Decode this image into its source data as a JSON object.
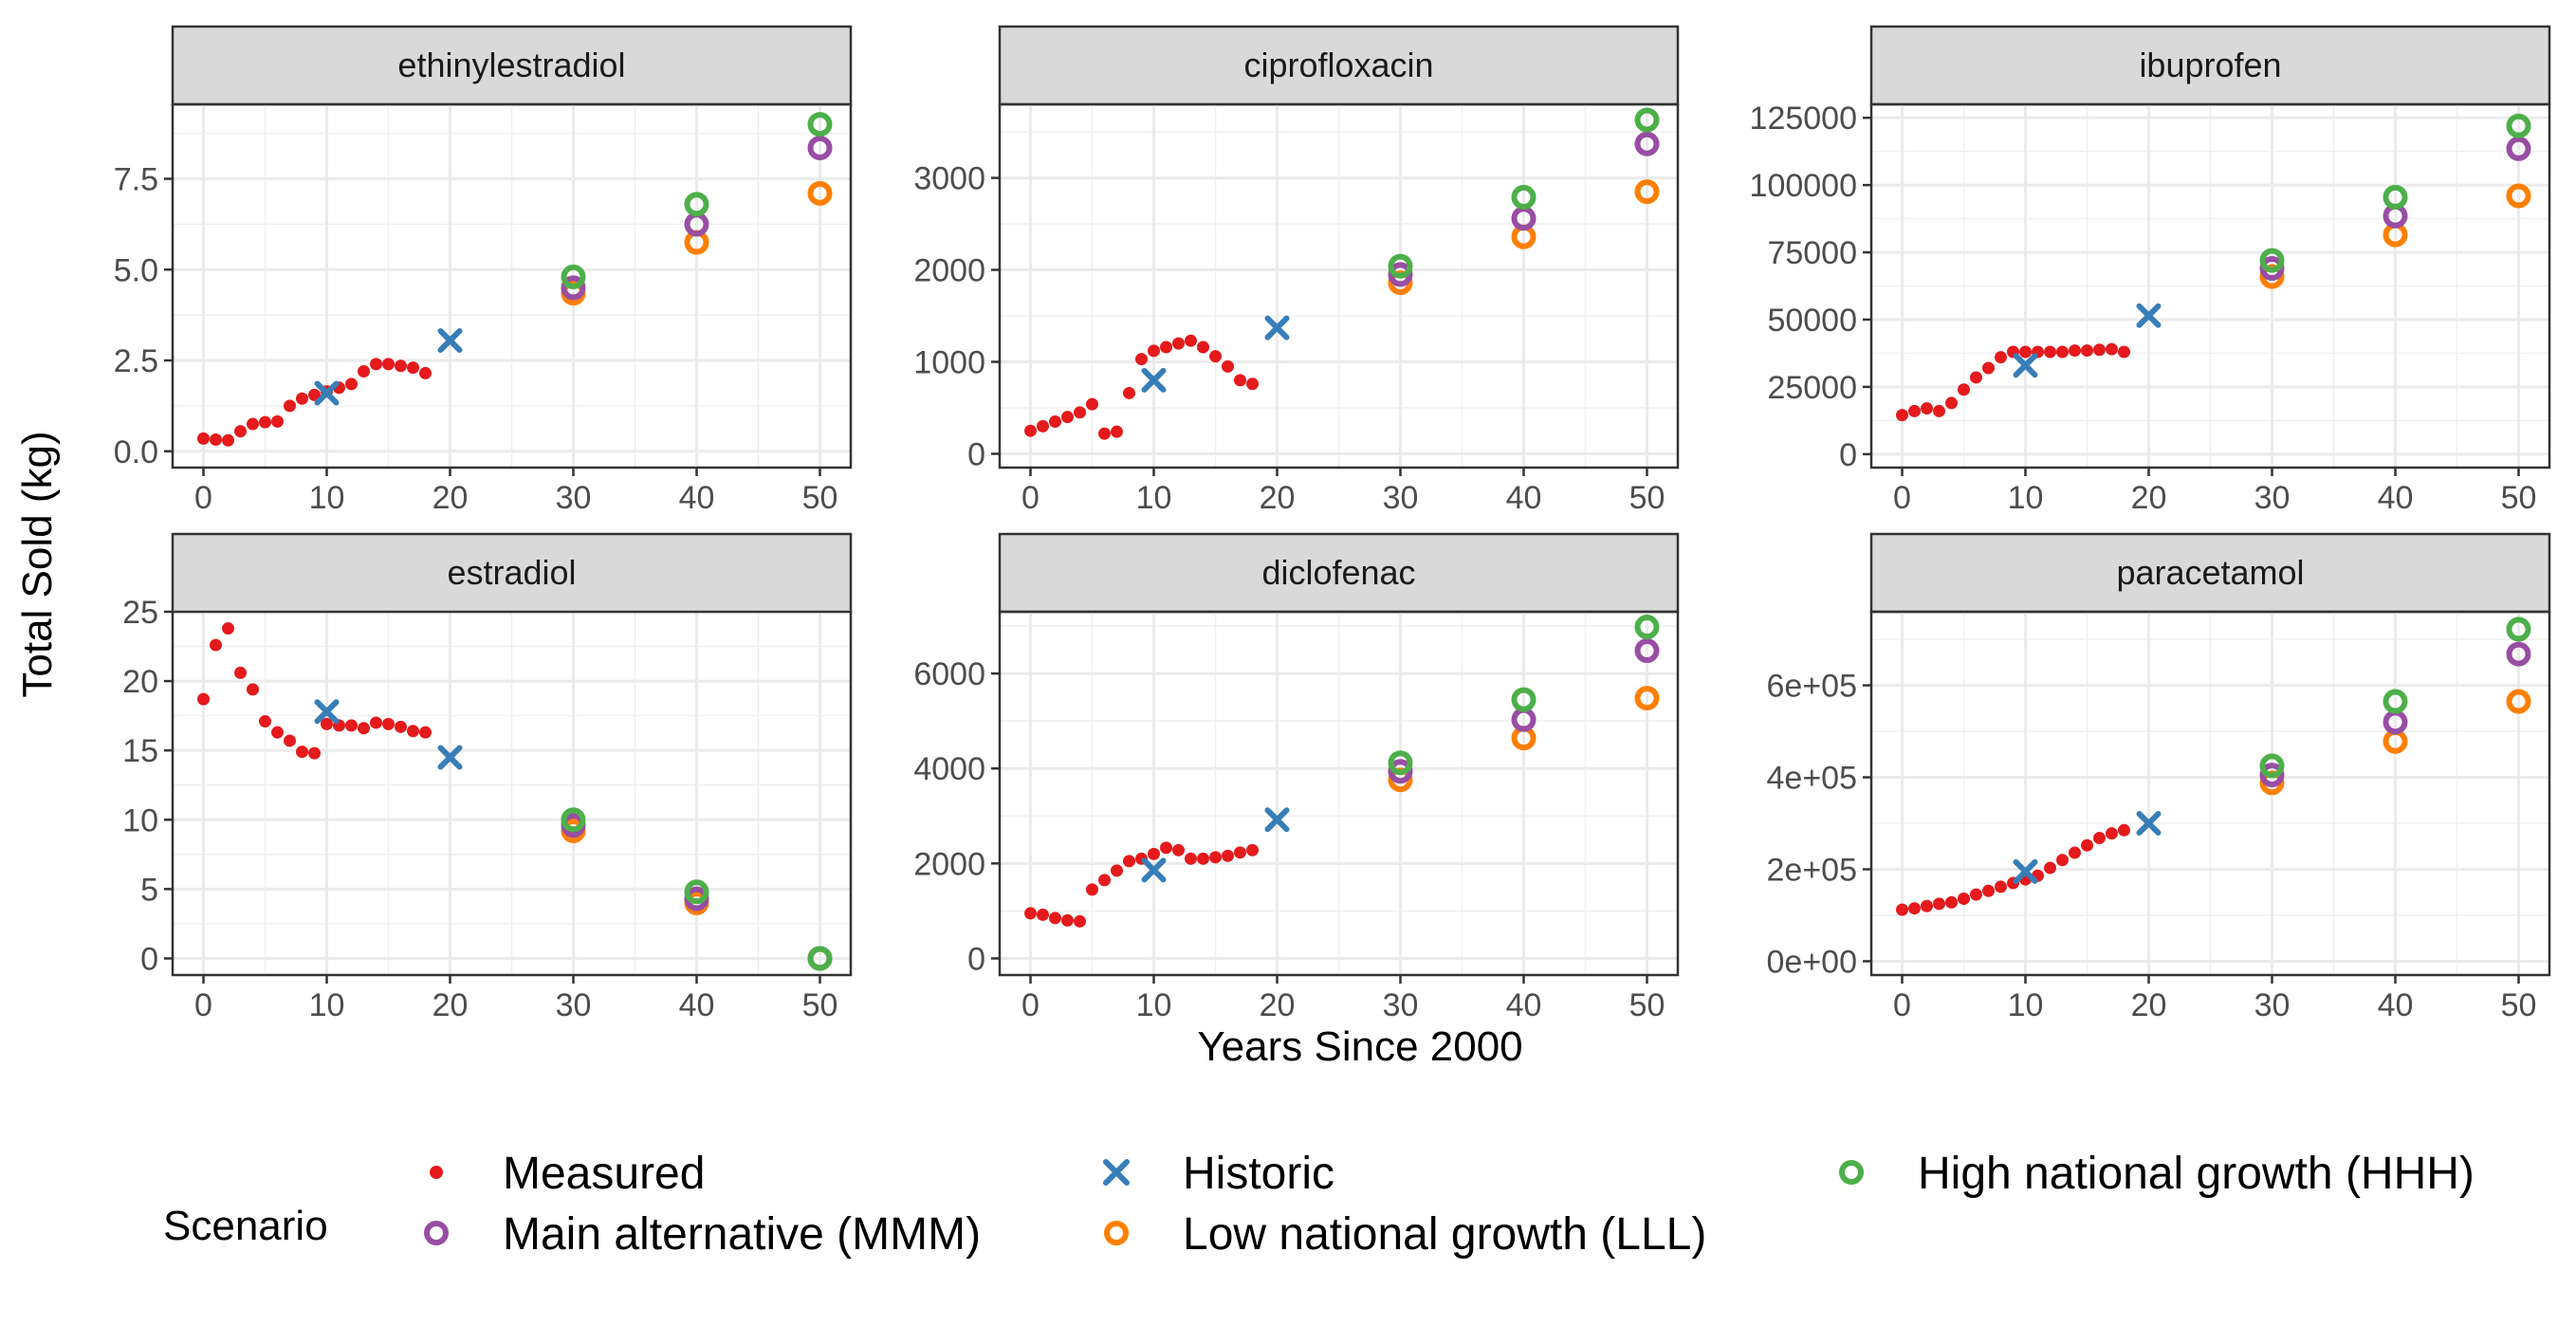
{
  "chart_data": {
    "type": "scatter",
    "xlabel": "Years Since 2000",
    "ylabel": "Total Sold (kg)",
    "x_ticks": [
      0,
      10,
      20,
      30,
      40,
      50
    ],
    "xlim": [
      -2.5,
      52.5
    ],
    "grid": true,
    "legend": {
      "title": "Scenario",
      "placement": "bottom",
      "entries": [
        {
          "name": "Measured",
          "shape": "dot",
          "color": "#E41A1C"
        },
        {
          "name": "Historic",
          "shape": "cross",
          "color": "#377EB8"
        },
        {
          "name": "High national growth (HHH)",
          "shape": "ring",
          "color": "#4DAF4A"
        },
        {
          "name": "Main alternative (MMM)",
          "shape": "ring",
          "color": "#984EA3"
        },
        {
          "name": "Low national growth (LLL)",
          "shape": "ring",
          "color": "#FF7F00"
        }
      ]
    },
    "panels": [
      {
        "title": "ethinylestradiol",
        "ylim": [
          -0.45,
          9.55
        ],
        "y_ticks": [
          0,
          2.5,
          5,
          7.5
        ],
        "y_tick_labels": [
          "0.0",
          "2.5",
          "5.0",
          "7.5"
        ],
        "measured": {
          "x": [
            0,
            1,
            2,
            3,
            4,
            5,
            6,
            7,
            8,
            9,
            10,
            11,
            12,
            13,
            14,
            15,
            16,
            17,
            18
          ],
          "y": [
            0.35,
            0.32,
            0.3,
            0.55,
            0.75,
            0.8,
            0.82,
            1.25,
            1.45,
            1.55,
            1.65,
            1.75,
            1.85,
            2.2,
            2.4,
            2.4,
            2.35,
            2.3,
            2.15
          ]
        },
        "historic": {
          "x": [
            10,
            20
          ],
          "y": [
            1.6,
            3.05
          ]
        },
        "high": {
          "x": [
            30,
            40,
            50
          ],
          "y": [
            4.8,
            6.8,
            9.0
          ]
        },
        "main": {
          "x": [
            30,
            40,
            50
          ],
          "y": [
            4.5,
            6.25,
            8.35
          ]
        },
        "low": {
          "x": [
            30,
            40,
            50
          ],
          "y": [
            4.35,
            5.75,
            7.1
          ]
        }
      },
      {
        "title": "ciprofloxacin",
        "ylim": [
          -150,
          3800
        ],
        "y_ticks": [
          0,
          1000,
          2000,
          3000
        ],
        "y_tick_labels": [
          "0",
          "1000",
          "2000",
          "3000"
        ],
        "measured": {
          "x": [
            0,
            1,
            2,
            3,
            4,
            5,
            6,
            7,
            8,
            9,
            10,
            11,
            12,
            13,
            14,
            15,
            16,
            17,
            18
          ],
          "y": [
            250,
            300,
            350,
            400,
            450,
            540,
            220,
            240,
            660,
            1030,
            1120,
            1160,
            1200,
            1230,
            1160,
            1060,
            950,
            800,
            760
          ]
        },
        "historic": {
          "x": [
            10,
            20
          ],
          "y": [
            800,
            1370
          ]
        },
        "high": {
          "x": [
            30,
            40,
            50
          ],
          "y": [
            2040,
            2790,
            3630
          ]
        },
        "main": {
          "x": [
            30,
            40,
            50
          ],
          "y": [
            1950,
            2560,
            3370
          ]
        },
        "low": {
          "x": [
            30,
            40,
            50
          ],
          "y": [
            1860,
            2360,
            2850
          ]
        }
      },
      {
        "title": "ibuprofen",
        "ylim": [
          -5000,
          130000
        ],
        "y_ticks": [
          0,
          25000,
          50000,
          75000,
          100000,
          125000
        ],
        "y_tick_labels": [
          "0",
          "25000",
          "50000",
          "75000",
          "100000",
          "125000"
        ],
        "measured": {
          "x": [
            0,
            1,
            2,
            3,
            4,
            5,
            6,
            7,
            8,
            9,
            10,
            11,
            12,
            13,
            14,
            15,
            16,
            17,
            18
          ],
          "y": [
            14500,
            16000,
            17000,
            16000,
            19000,
            24000,
            28500,
            32000,
            36000,
            38000,
            38000,
            38000,
            38000,
            38000,
            38500,
            38500,
            38800,
            39000,
            38000
          ]
        },
        "historic": {
          "x": [
            10,
            20
          ],
          "y": [
            33000,
            51500
          ]
        },
        "high": {
          "x": [
            30,
            40,
            50
          ],
          "y": [
            72000,
            95500,
            122000
          ]
        },
        "main": {
          "x": [
            30,
            40,
            50
          ],
          "y": [
            69000,
            88500,
            113500
          ]
        },
        "low": {
          "x": [
            30,
            40,
            50
          ],
          "y": [
            66000,
            81500,
            96000
          ]
        }
      },
      {
        "title": "estradiol",
        "ylim": [
          -1.2,
          25.0
        ],
        "y_ticks": [
          0,
          5,
          10,
          15,
          20,
          25
        ],
        "y_tick_labels": [
          "0",
          "5",
          "10",
          "15",
          "20",
          "25"
        ],
        "measured": {
          "x": [
            0,
            1,
            2,
            3,
            4,
            5,
            6,
            7,
            8,
            9,
            10,
            11,
            12,
            13,
            14,
            15,
            16,
            17,
            18
          ],
          "y": [
            18.7,
            22.6,
            23.8,
            20.6,
            19.4,
            17.1,
            16.3,
            15.7,
            14.9,
            14.8,
            16.9,
            16.8,
            16.8,
            16.6,
            17.0,
            16.9,
            16.7,
            16.4,
            16.3
          ]
        },
        "historic": {
          "x": [
            10,
            20
          ],
          "y": [
            17.8,
            14.5
          ]
        },
        "high": {
          "x": [
            30,
            40,
            50
          ],
          "y": [
            10.0,
            4.8,
            0
          ]
        },
        "main": {
          "x": [
            30,
            40,
            50
          ],
          "y": [
            9.6,
            4.3,
            0
          ]
        },
        "low": {
          "x": [
            30,
            40,
            50
          ],
          "y": [
            9.2,
            4.0,
            0
          ]
        }
      },
      {
        "title": "diclofenac",
        "ylim": [
          -350,
          7300
        ],
        "y_ticks": [
          0,
          2000,
          4000,
          6000
        ],
        "y_tick_labels": [
          "0",
          "2000",
          "4000",
          "6000"
        ],
        "measured": {
          "x": [
            0,
            1,
            2,
            3,
            4,
            5,
            6,
            7,
            8,
            9,
            10,
            11,
            12,
            13,
            14,
            15,
            16,
            17,
            18
          ],
          "y": [
            950,
            920,
            850,
            800,
            780,
            1450,
            1650,
            1850,
            2050,
            2100,
            2200,
            2330,
            2280,
            2100,
            2100,
            2130,
            2160,
            2230,
            2280
          ]
        },
        "historic": {
          "x": [
            10,
            20
          ],
          "y": [
            1860,
            2920
          ]
        },
        "high": {
          "x": [
            30,
            40,
            50
          ],
          "y": [
            4120,
            5450,
            6980
          ]
        },
        "main": {
          "x": [
            30,
            40,
            50
          ],
          "y": [
            3940,
            5030,
            6480
          ]
        },
        "low": {
          "x": [
            30,
            40,
            50
          ],
          "y": [
            3760,
            4640,
            5480
          ]
        }
      },
      {
        "title": "paracetamol",
        "ylim": [
          -30000,
          760000
        ],
        "y_ticks": [
          0,
          200000,
          400000,
          600000
        ],
        "y_tick_labels": [
          "0e+00",
          "2e+05",
          "4e+05",
          "6e+05"
        ],
        "measured": {
          "x": [
            0,
            1,
            2,
            3,
            4,
            5,
            6,
            7,
            8,
            9,
            10,
            11,
            12,
            13,
            14,
            15,
            16,
            17,
            18
          ],
          "y": [
            112000,
            115000,
            120000,
            125000,
            128000,
            136000,
            145000,
            153000,
            162000,
            170000,
            178000,
            186000,
            203000,
            220000,
            236000,
            252000,
            268000,
            278000,
            285000
          ]
        },
        "historic": {
          "x": [
            10,
            20
          ],
          "y": [
            195000,
            300000
          ]
        },
        "high": {
          "x": [
            30,
            40,
            50
          ],
          "y": [
            425000,
            565000,
            722000
          ]
        },
        "main": {
          "x": [
            30,
            40,
            50
          ],
          "y": [
            405000,
            520000,
            668000
          ]
        },
        "low": {
          "x": [
            30,
            40,
            50
          ],
          "y": [
            388000,
            478000,
            565000
          ]
        }
      }
    ]
  }
}
